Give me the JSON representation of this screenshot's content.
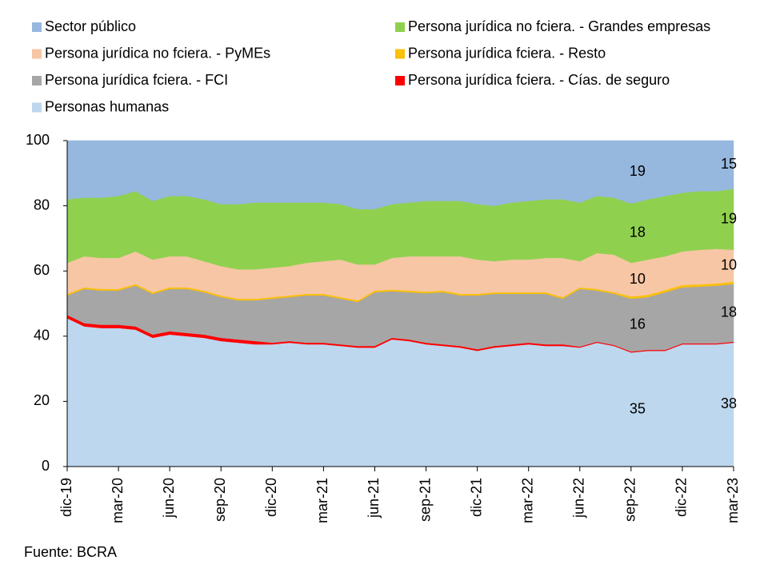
{
  "chart_data": {
    "type": "stacked-area",
    "source": "Fuente: BCRA",
    "categories": [
      "dic-19",
      null,
      null,
      "mar-20",
      null,
      null,
      "jun-20",
      null,
      null,
      "sep-20",
      null,
      null,
      "dic-20",
      null,
      null,
      "mar-21",
      null,
      null,
      "jun-21",
      null,
      null,
      "sep-21",
      null,
      null,
      "dic-21",
      null,
      null,
      "mar-22",
      null,
      null,
      "jun-22",
      null,
      null,
      "sep-22",
      null,
      null,
      "dic-22",
      null,
      null,
      "mar-23"
    ],
    "ylim": [
      0,
      100
    ],
    "yticks": [
      0,
      20,
      40,
      60,
      80,
      100
    ],
    "series": [
      {
        "name": "Personas humanas",
        "color": "#bdd7ee",
        "values": [
          45.5,
          43,
          42.5,
          42.5,
          42,
          39.5,
          40.5,
          40,
          39.5,
          38.5,
          38,
          37.5,
          37.5,
          38,
          37.5,
          37.5,
          37,
          36.5,
          36.5,
          39,
          38.5,
          37.5,
          37,
          36.5,
          35.5,
          36.5,
          37,
          37.5,
          37,
          37,
          36.5,
          38,
          37,
          35,
          35.5,
          35.5,
          37.5,
          37.5,
          37.5,
          38
        ],
        "value_labels": [
          null,
          null,
          null,
          null,
          null,
          null,
          null,
          null,
          null,
          null,
          null,
          null,
          null,
          null,
          null,
          null,
          null,
          null,
          null,
          null,
          null,
          null,
          null,
          null,
          null,
          null,
          null,
          null,
          null,
          null,
          null,
          null,
          null,
          "35",
          null,
          null,
          null,
          null,
          null,
          "38"
        ]
      },
      {
        "name": "Persona jurídica fciera. - Cías. de seguro",
        "color": "#ff0000",
        "values": [
          1,
          1,
          1,
          1,
          1,
          1,
          1,
          1,
          1,
          1,
          1,
          1,
          0.5,
          0.5,
          0.5,
          0.5,
          0.5,
          0.5,
          0.5,
          0.5,
          0.5,
          0.5,
          0.5,
          0.5,
          0.5,
          0.5,
          0.5,
          0.5,
          0.5,
          0.5,
          0.3,
          0.3,
          0.3,
          0.3,
          0.3,
          0.3,
          0.3,
          0.3,
          0.3,
          0.3
        ]
      },
      {
        "name": "Persona jurídica fciera. - FCI",
        "color": "#a6a6a6",
        "values": [
          6,
          10.5,
          10.5,
          10.5,
          12.5,
          12.5,
          13,
          13.5,
          13,
          12.5,
          12,
          12.5,
          13.5,
          13.5,
          14.5,
          14.5,
          14,
          13.5,
          16.5,
          14.3,
          14.5,
          15.2,
          16,
          15.5,
          16.5,
          16,
          15.5,
          15,
          15.5,
          14,
          17.7,
          15.7,
          15.7,
          16.2,
          16.2,
          17.7,
          17.2,
          17.4,
          17.7,
          17.7
        ],
        "value_labels": [
          null,
          null,
          null,
          null,
          null,
          null,
          null,
          null,
          null,
          null,
          null,
          null,
          null,
          null,
          null,
          null,
          null,
          null,
          null,
          null,
          null,
          null,
          null,
          null,
          null,
          null,
          null,
          null,
          null,
          null,
          null,
          null,
          null,
          "16",
          null,
          null,
          null,
          null,
          null,
          "18"
        ]
      },
      {
        "name": "Persona jurídica fciera. - Resto",
        "color": "#fbc00a",
        "values": [
          0.5,
          0.5,
          0.5,
          0.5,
          0.5,
          0.5,
          0.5,
          0.5,
          0.5,
          0.5,
          0.5,
          0.5,
          0.5,
          0.5,
          0.5,
          0.5,
          0.5,
          0.5,
          0.5,
          0.5,
          0.5,
          0.5,
          0.5,
          0.5,
          0.5,
          0.5,
          0.5,
          0.5,
          0.5,
          0.5,
          0.5,
          0.5,
          0.5,
          0.7,
          0.7,
          0.7,
          0.7,
          0.7,
          0.7,
          0.7
        ]
      },
      {
        "name": "Persona jurídica no fciera. - PyMEs",
        "color": "#f7c6a5",
        "values": [
          9.5,
          9.5,
          9.5,
          9.5,
          10,
          10,
          9.5,
          9.5,
          9,
          9,
          9,
          9,
          9,
          9,
          9.5,
          10,
          11.5,
          11,
          8,
          9.7,
          10.5,
          10.8,
          10.5,
          11.5,
          10.5,
          9.5,
          10,
          10,
          10.5,
          12,
          8,
          11,
          11.5,
          10.3,
          10.8,
          10.3,
          10.3,
          10.6,
          10.6,
          9.8
        ],
        "value_labels": [
          null,
          null,
          null,
          null,
          null,
          null,
          null,
          null,
          null,
          null,
          null,
          null,
          null,
          null,
          null,
          null,
          null,
          null,
          null,
          null,
          null,
          null,
          null,
          null,
          null,
          null,
          null,
          null,
          null,
          null,
          null,
          null,
          null,
          "10",
          null,
          null,
          null,
          null,
          null,
          "10"
        ]
      },
      {
        "name": "Persona jurídica no fciera. - Grandes empresas",
        "color": "#8fd14f",
        "values": [
          19.5,
          18,
          18.5,
          19,
          18.5,
          18,
          18.5,
          18.5,
          19,
          19,
          20,
          20.5,
          20,
          19.5,
          18.5,
          18,
          17,
          17,
          17,
          16.5,
          16.5,
          17,
          17,
          17,
          17,
          17,
          17.5,
          18,
          18,
          18,
          18,
          17.5,
          17.5,
          18.2,
          18.5,
          18.5,
          18,
          18,
          17.7,
          18.7
        ],
        "value_labels": [
          null,
          null,
          null,
          null,
          null,
          null,
          null,
          null,
          null,
          null,
          null,
          null,
          null,
          null,
          null,
          null,
          null,
          null,
          null,
          null,
          null,
          null,
          null,
          null,
          null,
          null,
          null,
          null,
          null,
          null,
          null,
          null,
          null,
          "18",
          null,
          null,
          null,
          null,
          null,
          "19"
        ]
      },
      {
        "name": "Sector público",
        "color": "#96b7de",
        "values": [
          18,
          17.5,
          17.5,
          17,
          15.5,
          18.5,
          17,
          17,
          18,
          19.5,
          19.5,
          19,
          19,
          19,
          19,
          19,
          19.5,
          21,
          21,
          19.5,
          19,
          18.5,
          18.5,
          18.5,
          19.5,
          20,
          19,
          18.5,
          18,
          18,
          19,
          17,
          17.5,
          19.3,
          18,
          17,
          16,
          15.5,
          15.5,
          14.8
        ],
        "value_labels": [
          null,
          null,
          null,
          null,
          null,
          null,
          null,
          null,
          null,
          null,
          null,
          null,
          null,
          null,
          null,
          null,
          null,
          null,
          null,
          null,
          null,
          null,
          null,
          null,
          null,
          null,
          null,
          null,
          null,
          null,
          null,
          null,
          null,
          "19",
          null,
          null,
          null,
          null,
          null,
          "15"
        ]
      }
    ]
  }
}
